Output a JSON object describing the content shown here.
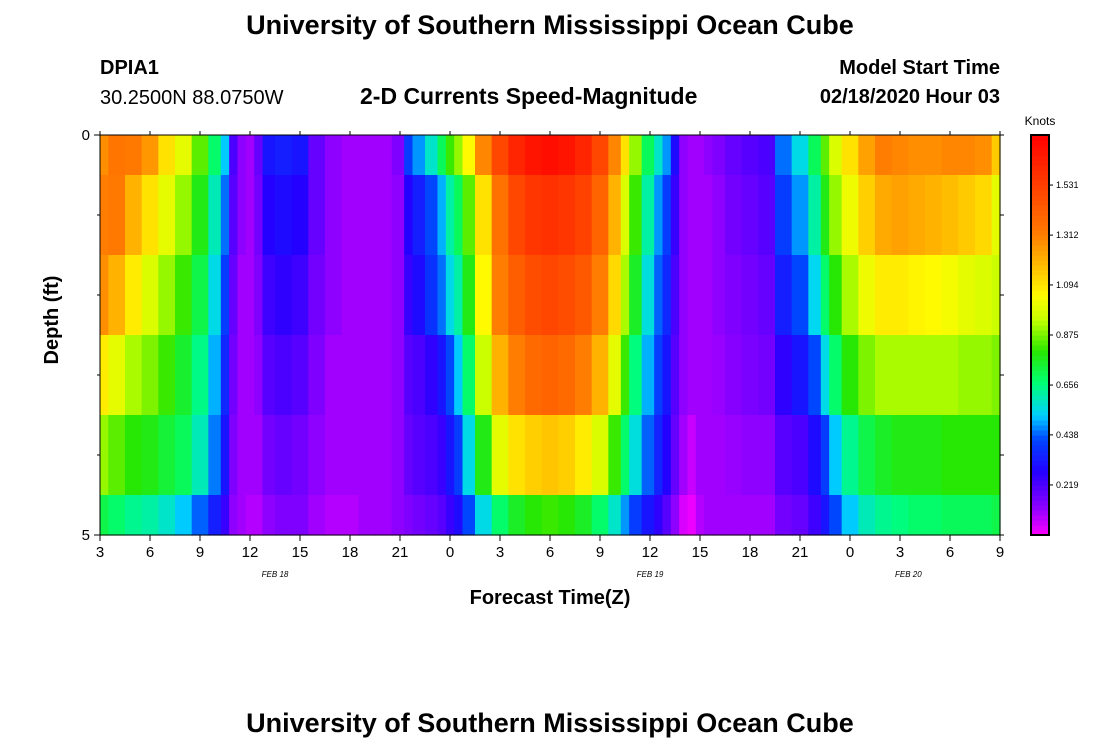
{
  "header": {
    "title": "University of Southern Mississippi Ocean Cube",
    "station_id": "DPIA1",
    "station_coords": "30.2500N 88.0750W",
    "subtitle": "2-D Currents Speed-Magnitude",
    "model_start_label": "Model Start Time",
    "model_start_time": "02/18/2020 Hour 03"
  },
  "footer": {
    "title": "University of Southern Mississippi Ocean Cube"
  },
  "chart_data": {
    "type": "heatmap",
    "title": "2-D Currents Speed-Magnitude",
    "xlabel": "Forecast Time(Z)",
    "ylabel": "Depth (ft)",
    "x_tick_labels": [
      "3",
      "6",
      "9",
      "12",
      "15",
      "18",
      "21",
      "0",
      "3",
      "6",
      "9",
      "12",
      "15",
      "18",
      "21",
      "0",
      "3",
      "6",
      "9"
    ],
    "x_hours": [
      3,
      6,
      9,
      12,
      15,
      18,
      21,
      24,
      27,
      30,
      33,
      36,
      39,
      42,
      45,
      48,
      51,
      54,
      57
    ],
    "xlim_hours": [
      3,
      57
    ],
    "date_labels": [
      {
        "text": "FEB 18",
        "hour": 13.5
      },
      {
        "text": "FEB 19",
        "hour": 36
      },
      {
        "text": "FEB 20",
        "hour": 51.5
      }
    ],
    "y_tick_labels": [
      "0",
      "5"
    ],
    "ylim": [
      0,
      5
    ],
    "depth_bands": [
      0,
      0.5,
      1.5,
      2.5,
      3.5,
      4.5,
      5
    ],
    "colorbar": {
      "unit": "Knots",
      "ticks": [
        1.531,
        1.312,
        1.094,
        0.875,
        0.656,
        0.438,
        0.219
      ],
      "range": [
        0.0,
        1.75
      ]
    },
    "time_hours": [
      3,
      4,
      5,
      6,
      7,
      8,
      9,
      10,
      10.5,
      11,
      11.5,
      12,
      12.5,
      13,
      14,
      15,
      16,
      17,
      18,
      19,
      20,
      21,
      21.5,
      22,
      23,
      23.5,
      24,
      24.5,
      25,
      26,
      27,
      28,
      29,
      30,
      31,
      32,
      33,
      34,
      34.5,
      35,
      36,
      36.5,
      37,
      37.5,
      38,
      38.5,
      39,
      39.5,
      40,
      41,
      42,
      43,
      44,
      45,
      46,
      46.5,
      47,
      48,
      49,
      50,
      51,
      52,
      53,
      54,
      55,
      56,
      57
    ],
    "speed_by_band": [
      [
        1.28,
        1.34,
        1.33,
        1.26,
        1.1,
        1.0,
        0.85,
        0.68,
        0.52,
        0.22,
        0.12,
        0.1,
        0.18,
        0.32,
        0.34,
        0.32,
        0.18,
        0.12,
        0.1,
        0.1,
        0.1,
        0.14,
        0.4,
        0.48,
        0.58,
        0.7,
        0.82,
        0.9,
        1.05,
        1.3,
        1.5,
        1.62,
        1.68,
        1.7,
        1.68,
        1.62,
        1.5,
        1.3,
        1.1,
        0.9,
        0.7,
        0.58,
        0.48,
        0.3,
        0.12,
        0.1,
        0.1,
        0.12,
        0.14,
        0.18,
        0.2,
        0.22,
        0.45,
        0.55,
        0.7,
        0.85,
        0.98,
        1.1,
        1.24,
        1.32,
        1.3,
        1.28,
        1.28,
        1.3,
        1.3,
        1.28,
        1.15
      ],
      [
        1.32,
        1.33,
        1.2,
        1.1,
        1.0,
        0.9,
        0.78,
        0.6,
        0.45,
        0.2,
        0.12,
        0.1,
        0.16,
        0.28,
        0.3,
        0.28,
        0.18,
        0.12,
        0.1,
        0.1,
        0.1,
        0.12,
        0.28,
        0.34,
        0.42,
        0.5,
        0.62,
        0.7,
        0.85,
        1.1,
        1.35,
        1.5,
        1.56,
        1.58,
        1.56,
        1.52,
        1.4,
        1.2,
        0.98,
        0.82,
        0.62,
        0.48,
        0.4,
        0.25,
        0.12,
        0.1,
        0.1,
        0.1,
        0.12,
        0.16,
        0.18,
        0.2,
        0.4,
        0.48,
        0.62,
        0.78,
        0.9,
        1.02,
        1.14,
        1.22,
        1.24,
        1.22,
        1.2,
        1.18,
        1.15,
        1.12,
        1.0
      ],
      [
        1.28,
        1.2,
        1.08,
        0.98,
        0.9,
        0.82,
        0.72,
        0.55,
        0.4,
        0.18,
        0.1,
        0.1,
        0.14,
        0.24,
        0.26,
        0.24,
        0.16,
        0.12,
        0.1,
        0.1,
        0.1,
        0.12,
        0.25,
        0.3,
        0.38,
        0.45,
        0.55,
        0.62,
        0.78,
        1.05,
        1.32,
        1.42,
        1.48,
        1.5,
        1.48,
        1.44,
        1.32,
        1.12,
        0.92,
        0.76,
        0.56,
        0.44,
        0.36,
        0.22,
        0.12,
        0.1,
        0.1,
        0.1,
        0.12,
        0.14,
        0.16,
        0.18,
        0.34,
        0.42,
        0.54,
        0.68,
        0.8,
        0.92,
        1.02,
        1.08,
        1.08,
        1.06,
        1.05,
        1.03,
        1.0,
        0.98,
        0.95
      ],
      [
        1.08,
        1.0,
        0.92,
        0.88,
        0.82,
        0.75,
        0.65,
        0.5,
        0.36,
        0.16,
        0.1,
        0.1,
        0.12,
        0.2,
        0.22,
        0.2,
        0.14,
        0.1,
        0.1,
        0.1,
        0.1,
        0.12,
        0.2,
        0.22,
        0.26,
        0.32,
        0.42,
        0.52,
        0.68,
        0.95,
        1.2,
        1.32,
        1.38,
        1.4,
        1.38,
        1.32,
        1.2,
        1.0,
        0.82,
        0.66,
        0.5,
        0.4,
        0.32,
        0.2,
        0.12,
        0.1,
        0.1,
        0.1,
        0.11,
        0.13,
        0.15,
        0.16,
        0.26,
        0.32,
        0.42,
        0.55,
        0.68,
        0.8,
        0.88,
        0.92,
        0.92,
        0.92,
        0.92,
        0.92,
        0.9,
        0.9,
        0.88
      ],
      [
        0.9,
        0.85,
        0.8,
        0.78,
        0.74,
        0.7,
        0.6,
        0.46,
        0.32,
        0.14,
        0.1,
        0.1,
        0.1,
        0.16,
        0.18,
        0.16,
        0.12,
        0.1,
        0.1,
        0.1,
        0.1,
        0.12,
        0.18,
        0.2,
        0.22,
        0.25,
        0.32,
        0.4,
        0.55,
        0.78,
        1.0,
        1.1,
        1.14,
        1.16,
        1.14,
        1.08,
        0.98,
        0.82,
        0.68,
        0.56,
        0.44,
        0.35,
        0.28,
        0.18,
        0.1,
        0.06,
        0.1,
        0.1,
        0.1,
        0.11,
        0.12,
        0.12,
        0.2,
        0.22,
        0.3,
        0.4,
        0.52,
        0.64,
        0.72,
        0.76,
        0.78,
        0.78,
        0.78,
        0.8,
        0.8,
        0.8,
        0.8
      ],
      [
        0.72,
        0.68,
        0.64,
        0.62,
        0.58,
        0.52,
        0.44,
        0.34,
        0.25,
        0.12,
        0.1,
        0.08,
        0.08,
        0.12,
        0.14,
        0.14,
        0.1,
        0.08,
        0.08,
        0.1,
        0.1,
        0.12,
        0.14,
        0.16,
        0.18,
        0.2,
        0.25,
        0.3,
        0.42,
        0.55,
        0.68,
        0.76,
        0.8,
        0.82,
        0.8,
        0.76,
        0.68,
        0.58,
        0.48,
        0.4,
        0.32,
        0.26,
        0.2,
        0.12,
        0.04,
        0.02,
        0.08,
        0.1,
        0.1,
        0.1,
        0.1,
        0.1,
        0.16,
        0.18,
        0.24,
        0.32,
        0.42,
        0.52,
        0.6,
        0.64,
        0.66,
        0.68,
        0.68,
        0.7,
        0.7,
        0.7,
        0.72
      ]
    ]
  }
}
